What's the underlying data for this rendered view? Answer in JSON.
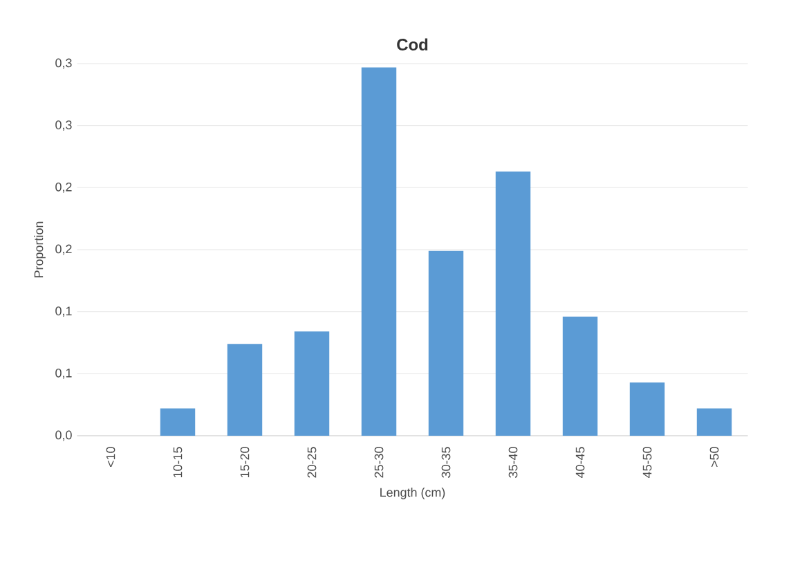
{
  "chart_data": {
    "type": "bar",
    "title": "Cod",
    "xlabel": "Length (cm)",
    "ylabel": "Proportion",
    "categories": [
      "<10",
      "10-15",
      "15-20",
      "20-25",
      "25-30",
      "30-35",
      "35-40",
      "40-45",
      "45-50",
      ">50"
    ],
    "values": [
      0,
      0.022,
      0.074,
      0.084,
      0.297,
      0.149,
      0.213,
      0.096,
      0.043,
      0.022
    ],
    "color": "#5b9bd5",
    "ylim": [
      0,
      0.3
    ],
    "yticks": [
      {
        "value": 0,
        "label": "0,0"
      },
      {
        "value": 0.05,
        "label": "0,1"
      },
      {
        "value": 0.1,
        "label": "0,1"
      },
      {
        "value": 0.15,
        "label": "0,2"
      },
      {
        "value": 0.2,
        "label": "0,2"
      },
      {
        "value": 0.25,
        "label": "0,3"
      },
      {
        "value": 0.3,
        "label": "0,3"
      }
    ],
    "grid": "y"
  }
}
